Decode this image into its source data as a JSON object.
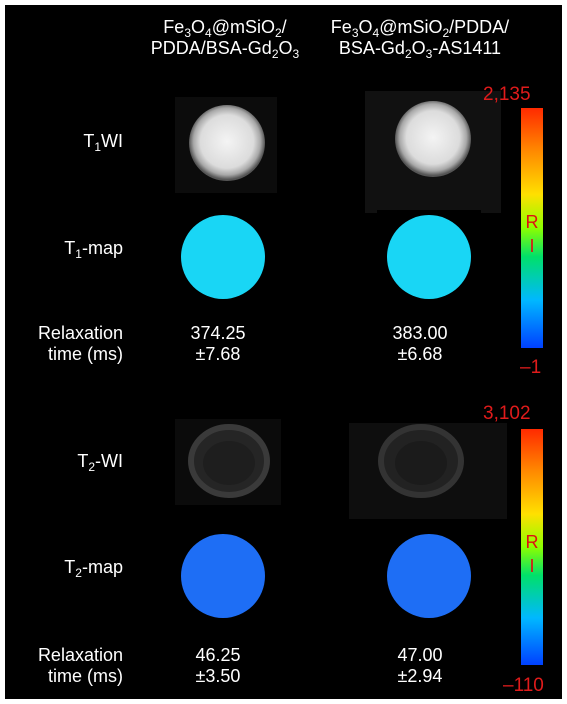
{
  "columns": [
    {
      "line1": {
        "p1": "Fe",
        "s1": "3",
        "p2": "O",
        "s2": "4",
        "p3": "@mSiO",
        "s3": "2",
        "p4": "/"
      },
      "line2": {
        "p1": "PDDA/BSA-Gd",
        "s1": "2",
        "p2": "O",
        "s2": "3"
      }
    },
    {
      "line1": {
        "p1": "Fe",
        "s1": "3",
        "p2": "O",
        "s2": "4",
        "p3": "@mSiO",
        "s3": "2",
        "p4": "/PDDA/"
      },
      "line2": {
        "p1": "BSA-Gd",
        "s1": "2",
        "p2": "O",
        "s2": "3",
        "p3": "-AS1411"
      }
    }
  ],
  "rows": {
    "t1wi": {
      "p1": "T",
      "s": "1",
      "p2": "WI"
    },
    "t1map": {
      "p1": "T",
      "s": "1",
      "p2": "-map"
    },
    "t2wi": {
      "p1": "T",
      "s": "2",
      "p2": "-WI"
    },
    "t2map": {
      "p1": "T",
      "s": "2",
      "p2": "-map"
    },
    "relax_line1": "Relaxation",
    "relax_line2": "time (ms)"
  },
  "t1_values": [
    {
      "mean": "374.25",
      "sd": "±7.68"
    },
    {
      "mean": "383.00",
      "sd": "±6.68"
    }
  ],
  "t2_values": [
    {
      "mean": "46.25",
      "sd": "±3.50"
    },
    {
      "mean": "47.00",
      "sd": "±2.94"
    }
  ],
  "colorbars": [
    {
      "max": "2,135",
      "min": "–1",
      "label_r": "R",
      "label_i": "I"
    },
    {
      "max": "3,102",
      "min": "–110",
      "label_r": "R",
      "label_i": "I"
    }
  ],
  "colors": {
    "background": "#000000",
    "t1_map_fill": "#19d6f5",
    "t2_map_fill": "#1e6ef5",
    "scale_label": "#e01b1b"
  }
}
